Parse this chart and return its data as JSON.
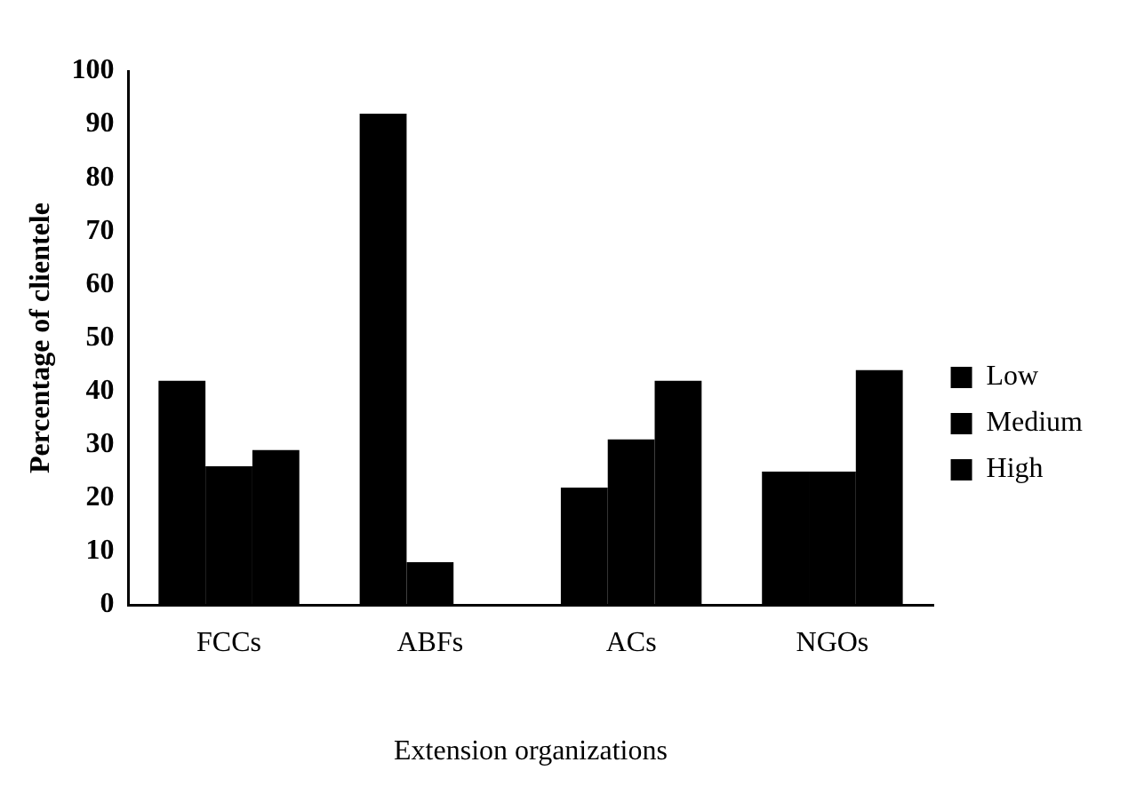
{
  "chart_data": {
    "type": "bar",
    "xlabel": "Extension organizations",
    "ylabel": "Percentage of clientele",
    "categories": [
      "FCCs",
      "ABFs",
      "ACs",
      "NGOs"
    ],
    "series": [
      {
        "name": "Low",
        "color": "#000000",
        "values": [
          42,
          92,
          22,
          25
        ]
      },
      {
        "name": "Medium",
        "color": "#000000",
        "values": [
          26,
          8,
          31,
          25
        ]
      },
      {
        "name": "High",
        "color": "#000000",
        "values": [
          29,
          0,
          42,
          44
        ]
      }
    ],
    "ylim": [
      0,
      100
    ],
    "yticks": [
      0,
      10,
      20,
      30,
      40,
      50,
      60,
      70,
      80,
      90,
      100
    ],
    "grid": false,
    "legend": "right"
  }
}
